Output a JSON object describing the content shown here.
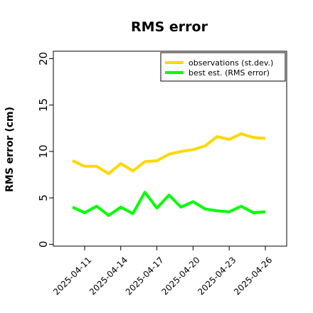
{
  "chart_data": {
    "type": "line",
    "title": "RMS error",
    "xlabel": "",
    "ylabel": "RMS error (cm)",
    "ylim": [
      -0.2,
      20.8
    ],
    "yticks": [
      0,
      5,
      10,
      15,
      20
    ],
    "x": [
      "2025-04-10",
      "2025-04-11",
      "2025-04-12",
      "2025-04-13",
      "2025-04-14",
      "2025-04-15",
      "2025-04-16",
      "2025-04-17",
      "2025-04-18",
      "2025-04-19",
      "2025-04-20",
      "2025-04-21",
      "2025-04-22",
      "2025-04-23",
      "2025-04-24",
      "2025-04-25",
      "2025-04-26"
    ],
    "x_tick_labels": [
      {
        "label": "2025-04-11",
        "color": "#000000"
      },
      {
        "label": "2025-04-14",
        "color": "#000000"
      },
      {
        "label": "2025-04-17",
        "color": "#228B22"
      },
      {
        "label": "2025-04-20",
        "color": "#000000"
      },
      {
        "label": "2025-04-23",
        "color": "#000000"
      },
      {
        "label": "2025-04-26",
        "color": "#000000"
      }
    ],
    "x_tick_dates": [
      "2025-04-11",
      "2025-04-14",
      "2025-04-17",
      "2025-04-20",
      "2025-04-23",
      "2025-04-26"
    ],
    "grid": false,
    "legend_position": "top-right",
    "series": [
      {
        "name": "observations (st.dev.)",
        "color": "#FFD700",
        "values": [
          9.0,
          8.4,
          8.4,
          7.6,
          8.7,
          7.9,
          8.9,
          9.0,
          9.7,
          10.0,
          10.2,
          10.6,
          11.6,
          11.3,
          11.9,
          11.5,
          11.4
        ]
      },
      {
        "name": "best est. (RMS error)",
        "color": "#00FF00",
        "values": [
          4.0,
          3.4,
          4.1,
          3.1,
          4.0,
          3.3,
          5.6,
          3.9,
          5.3,
          4.0,
          4.6,
          3.8,
          3.6,
          3.5,
          4.1,
          3.4,
          3.5
        ]
      }
    ]
  }
}
